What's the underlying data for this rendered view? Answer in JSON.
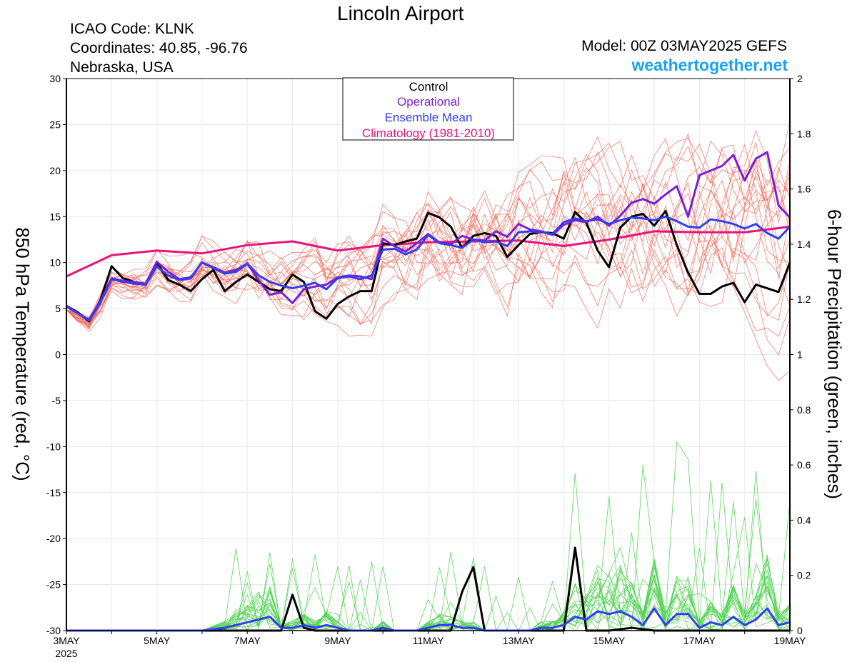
{
  "header": {
    "title": "Lincoln Airport",
    "icao": "ICAO Code: KLNK",
    "coordinates": "Coordinates: 40.85, -96.76",
    "region": "Nebraska, USA",
    "model": "Model: 00Z 03MAY2025 GEFS",
    "site": "weathertogether.net"
  },
  "colors": {
    "control": "#000000",
    "operational": "#7b1fd6",
    "ensemble_mean": "#2f3ff0",
    "climatology": "#e8127d",
    "members_temp": "#f26b5b",
    "members_precip": "#4fd24f",
    "site": "#1aa3f0"
  },
  "chart_data": {
    "type": "line",
    "title": "Lincoln Airport",
    "ylabel": "850 hPa Temperature (red, °C)",
    "y2label": "6-hour Precipitation (green, inches)",
    "ylim": [
      -30,
      30
    ],
    "y2lim": [
      0,
      2
    ],
    "xlim_days": [
      0,
      16
    ],
    "x_ticks": [
      "3MAY",
      "5MAY",
      "7MAY",
      "9MAY",
      "11MAY",
      "13MAY",
      "15MAY",
      "17MAY",
      "19MAY"
    ],
    "x_sublabel": "2025",
    "y_ticks": [
      30,
      25,
      20,
      15,
      10,
      5,
      0,
      -5,
      -10,
      -15,
      -20,
      -25,
      -30
    ],
    "y2_ticks": [
      "2",
      "1.8",
      "1.6",
      "1.4",
      "1.2",
      "1",
      "0.8",
      "0.6",
      "0.4",
      "0.2",
      "0"
    ],
    "legend": {
      "position": "top-center",
      "entries": [
        "Control",
        "Operational",
        "Ensemble Mean",
        "Climatology (1981-2010)"
      ]
    },
    "series": {
      "climatology": {
        "x": [
          0,
          1,
          2,
          3,
          4,
          5,
          6,
          7,
          8,
          9,
          10,
          11,
          12,
          13,
          14,
          15,
          16
        ],
        "y": [
          8.5,
          10.8,
          11.3,
          11.0,
          11.9,
          12.3,
          11.3,
          11.9,
          12.2,
          12.3,
          12.4,
          11.8,
          12.5,
          13.4,
          13.3,
          13.3,
          13.9
        ]
      },
      "control_temp": {
        "x": [
          0,
          0.25,
          0.5,
          0.75,
          1,
          1.25,
          1.5,
          1.75,
          2,
          2.25,
          2.5,
          2.75,
          3,
          3.25,
          3.5,
          3.75,
          4,
          4.25,
          4.5,
          4.75,
          5,
          5.25,
          5.5,
          5.75,
          6,
          6.25,
          6.5,
          6.75,
          7,
          7.25,
          7.5,
          7.75,
          8,
          8.25,
          8.5,
          8.75,
          9,
          9.25,
          9.5,
          9.75,
          10,
          10.25,
          10.5,
          10.75,
          11,
          11.25,
          11.5,
          11.75,
          12,
          12.25,
          12.5,
          12.75,
          13,
          13.25,
          13.5,
          13.75,
          14,
          14.25,
          14.5,
          14.75,
          15,
          15.25,
          15.5,
          15.75,
          16
        ],
        "y": [
          5.3,
          4.6,
          3.6,
          5.9,
          9.6,
          8.3,
          7.9,
          7.6,
          10.0,
          8.1,
          7.6,
          6.9,
          8.2,
          9.2,
          6.9,
          7.9,
          8.7,
          7.9,
          7.1,
          6.9,
          8.7,
          7.9,
          4.7,
          3.9,
          5.5,
          6.3,
          6.9,
          6.9,
          12.1,
          11.9,
          12.3,
          12.6,
          15.4,
          14.9,
          13.9,
          11.6,
          12.9,
          13.2,
          12.9,
          10.6,
          11.9,
          13.1,
          13.3,
          13.2,
          12.6,
          15.5,
          14.3,
          11.3,
          9.5,
          13.8,
          15.0,
          15.3,
          14.0,
          15.6,
          11.9,
          8.9,
          6.6,
          6.6,
          7.4,
          7.8,
          5.7,
          7.6,
          7.2,
          6.8,
          10.0
        ]
      },
      "operational_temp": {
        "x": [
          0,
          0.25,
          0.5,
          0.75,
          1,
          1.25,
          1.5,
          1.75,
          2,
          2.25,
          2.5,
          2.75,
          3,
          3.25,
          3.5,
          3.75,
          4,
          4.25,
          4.5,
          4.75,
          5,
          5.25,
          5.5,
          5.75,
          6,
          6.25,
          6.5,
          6.75,
          7,
          7.25,
          7.5,
          7.75,
          8,
          8.25,
          8.5,
          8.75,
          9,
          9.25,
          9.5,
          9.75,
          10,
          10.25,
          10.5,
          10.75,
          11,
          11.25,
          11.5,
          11.75,
          12,
          12.25,
          12.5,
          12.75,
          13,
          13.25,
          13.5,
          13.75,
          14,
          14.25,
          14.5,
          14.75,
          15,
          15.25,
          15.5,
          15.75,
          16
        ],
        "y": [
          5.2,
          4.5,
          3.8,
          5.8,
          8.3,
          8.0,
          7.9,
          7.7,
          10.1,
          9.0,
          8.2,
          8.4,
          10.0,
          9.5,
          8.9,
          9.2,
          9.9,
          8.1,
          6.5,
          6.8,
          5.6,
          7.1,
          7.4,
          7.6,
          8.4,
          8.6,
          8.5,
          8.2,
          12.6,
          11.8,
          11.2,
          12.1,
          13.1,
          12.2,
          12.0,
          12.9,
          12.5,
          12.4,
          13.4,
          12.8,
          14.2,
          13.6,
          13.4,
          13.0,
          14.1,
          14.6,
          14.4,
          15.0,
          14.0,
          15.1,
          16.5,
          16.9,
          16.4,
          17.4,
          18.3,
          15.0,
          19.5,
          20.0,
          20.5,
          21.7,
          18.9,
          21.3,
          22.0,
          16.2,
          14.9
        ]
      },
      "ensemble_mean_temp": {
        "x": [
          0,
          0.25,
          0.5,
          0.75,
          1,
          1.25,
          1.5,
          1.75,
          2,
          2.25,
          2.5,
          2.75,
          3,
          3.25,
          3.5,
          3.75,
          4,
          4.25,
          4.5,
          4.75,
          5,
          5.25,
          5.5,
          5.75,
          6,
          6.25,
          6.5,
          6.75,
          7,
          7.25,
          7.5,
          7.75,
          8,
          8.25,
          8.5,
          8.75,
          9,
          9.25,
          9.5,
          9.75,
          10,
          10.25,
          10.5,
          10.75,
          11,
          11.25,
          11.5,
          11.75,
          12,
          12.25,
          12.5,
          12.75,
          13,
          13.25,
          13.5,
          13.75,
          14,
          14.25,
          14.5,
          14.75,
          15,
          15.25,
          15.5,
          15.75,
          16
        ],
        "y": [
          5.3,
          4.5,
          3.7,
          5.6,
          8.2,
          7.9,
          7.7,
          7.6,
          9.6,
          8.6,
          8.1,
          8.3,
          10.0,
          9.4,
          8.8,
          9.0,
          9.9,
          8.6,
          7.9,
          7.5,
          7.2,
          7.5,
          7.8,
          7.1,
          8.3,
          8.5,
          8.2,
          8.6,
          11.4,
          11.5,
          10.9,
          11.4,
          13.0,
          12.1,
          11.9,
          11.6,
          12.5,
          12.2,
          12.3,
          11.8,
          13.3,
          13.4,
          13.3,
          13.1,
          14.4,
          14.8,
          14.5,
          14.7,
          14.2,
          14.6,
          14.9,
          14.8,
          14.6,
          15.0,
          14.5,
          13.9,
          13.8,
          14.7,
          14.5,
          14.2,
          13.7,
          14.2,
          13.2,
          12.6,
          13.9
        ]
      },
      "control_precip": {
        "x": [
          0,
          0.5,
          1,
          1.5,
          2,
          2.5,
          3,
          3.5,
          4,
          4.5,
          4.75,
          5,
          5.25,
          5.5,
          5.75,
          6,
          6.5,
          7,
          7.5,
          8,
          8.5,
          8.75,
          9,
          9.25,
          9.5,
          9.75,
          10,
          10.5,
          11,
          11.25,
          11.5,
          11.75,
          12,
          12.5,
          13,
          13.5,
          14,
          14.5,
          15,
          15.5,
          16
        ],
        "y": [
          0,
          0,
          0,
          0,
          0,
          0,
          0,
          0,
          0,
          0,
          0,
          0.13,
          0.01,
          0,
          0,
          0,
          0,
          0,
          0,
          0,
          0,
          0.14,
          0.23,
          0,
          0,
          0,
          0,
          0,
          0,
          0.3,
          0,
          0,
          0,
          0.01,
          0,
          0,
          0,
          0,
          0,
          0,
          0
        ]
      },
      "ensemble_mean_precip": {
        "x": [
          0,
          0.5,
          1,
          1.5,
          2,
          2.5,
          3,
          3.5,
          3.75,
          4,
          4.25,
          4.5,
          4.75,
          5,
          5.25,
          5.5,
          5.75,
          6,
          6.25,
          6.5,
          6.75,
          7,
          7.25,
          7.5,
          7.75,
          8,
          8.25,
          8.5,
          8.75,
          9,
          9.25,
          9.5,
          9.75,
          10,
          10.25,
          10.5,
          10.75,
          11,
          11.25,
          11.5,
          11.75,
          12,
          12.25,
          12.5,
          12.75,
          13,
          13.25,
          13.5,
          13.75,
          14,
          14.25,
          14.5,
          14.75,
          15,
          15.25,
          15.5,
          15.75,
          16
        ],
        "y": [
          0,
          0,
          0,
          0,
          0,
          0,
          0,
          0.01,
          0.02,
          0.03,
          0.04,
          0.05,
          0.01,
          0.01,
          0.02,
          0.01,
          0.02,
          0.01,
          0,
          0,
          0,
          0.01,
          0,
          0,
          0,
          0.01,
          0.02,
          0.02,
          0.01,
          0.01,
          0,
          0,
          0,
          0,
          0,
          0.01,
          0.01,
          0.02,
          0.05,
          0.04,
          0.07,
          0.06,
          0.07,
          0.05,
          0.02,
          0.08,
          0.02,
          0.06,
          0.06,
          0.01,
          0.03,
          0.02,
          0.05,
          0.02,
          0.04,
          0.08,
          0.02,
          0.03
        ]
      }
    }
  }
}
